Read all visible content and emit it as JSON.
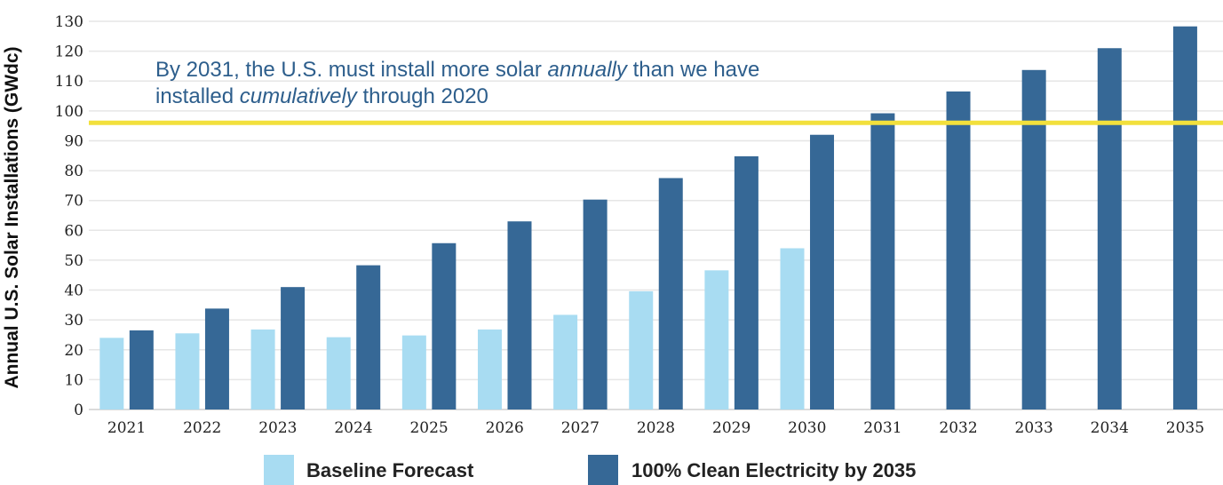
{
  "chart_data": {
    "type": "bar",
    "ylabel": "Annual U.S. Solar Installations (GWdc)",
    "xlabel": "",
    "ylim": [
      0,
      130
    ],
    "yticks": [
      0,
      10,
      20,
      30,
      40,
      50,
      60,
      70,
      80,
      90,
      100,
      110,
      120,
      130
    ],
    "grid": true,
    "legend_position": "bottom",
    "categories": [
      "2021",
      "2022",
      "2023",
      "2024",
      "2025",
      "2026",
      "2027",
      "2028",
      "2029",
      "2030",
      "2031",
      "2032",
      "2033",
      "2034",
      "2035"
    ],
    "series": [
      {
        "name": "Baseline Forecast",
        "color": "#a8dcf2",
        "values": [
          24,
          25.5,
          26.8,
          24.2,
          24.8,
          26.8,
          31.7,
          39.6,
          46.6,
          54,
          null,
          null,
          null,
          null,
          null
        ]
      },
      {
        "name": "100% Clean Electricity by 2035",
        "color": "#366896",
        "values": [
          26.5,
          33.8,
          41,
          48.3,
          55.7,
          63,
          70.3,
          77.5,
          84.8,
          92,
          99.2,
          106.5,
          113.7,
          121,
          128.3
        ]
      }
    ],
    "reference_line": {
      "value": 96,
      "color": "#f2e03c"
    },
    "annotation": {
      "line1_parts": [
        {
          "text": "By 2031, the U.S. must install more solar ",
          "italic": false
        },
        {
          "text": "annually",
          "italic": true
        },
        {
          "text": " than we have",
          "italic": false
        }
      ],
      "line2_parts": [
        {
          "text": "installed ",
          "italic": false
        },
        {
          "text": "cumulatively",
          "italic": true
        },
        {
          "text": " through 2020",
          "italic": false
        }
      ]
    }
  }
}
